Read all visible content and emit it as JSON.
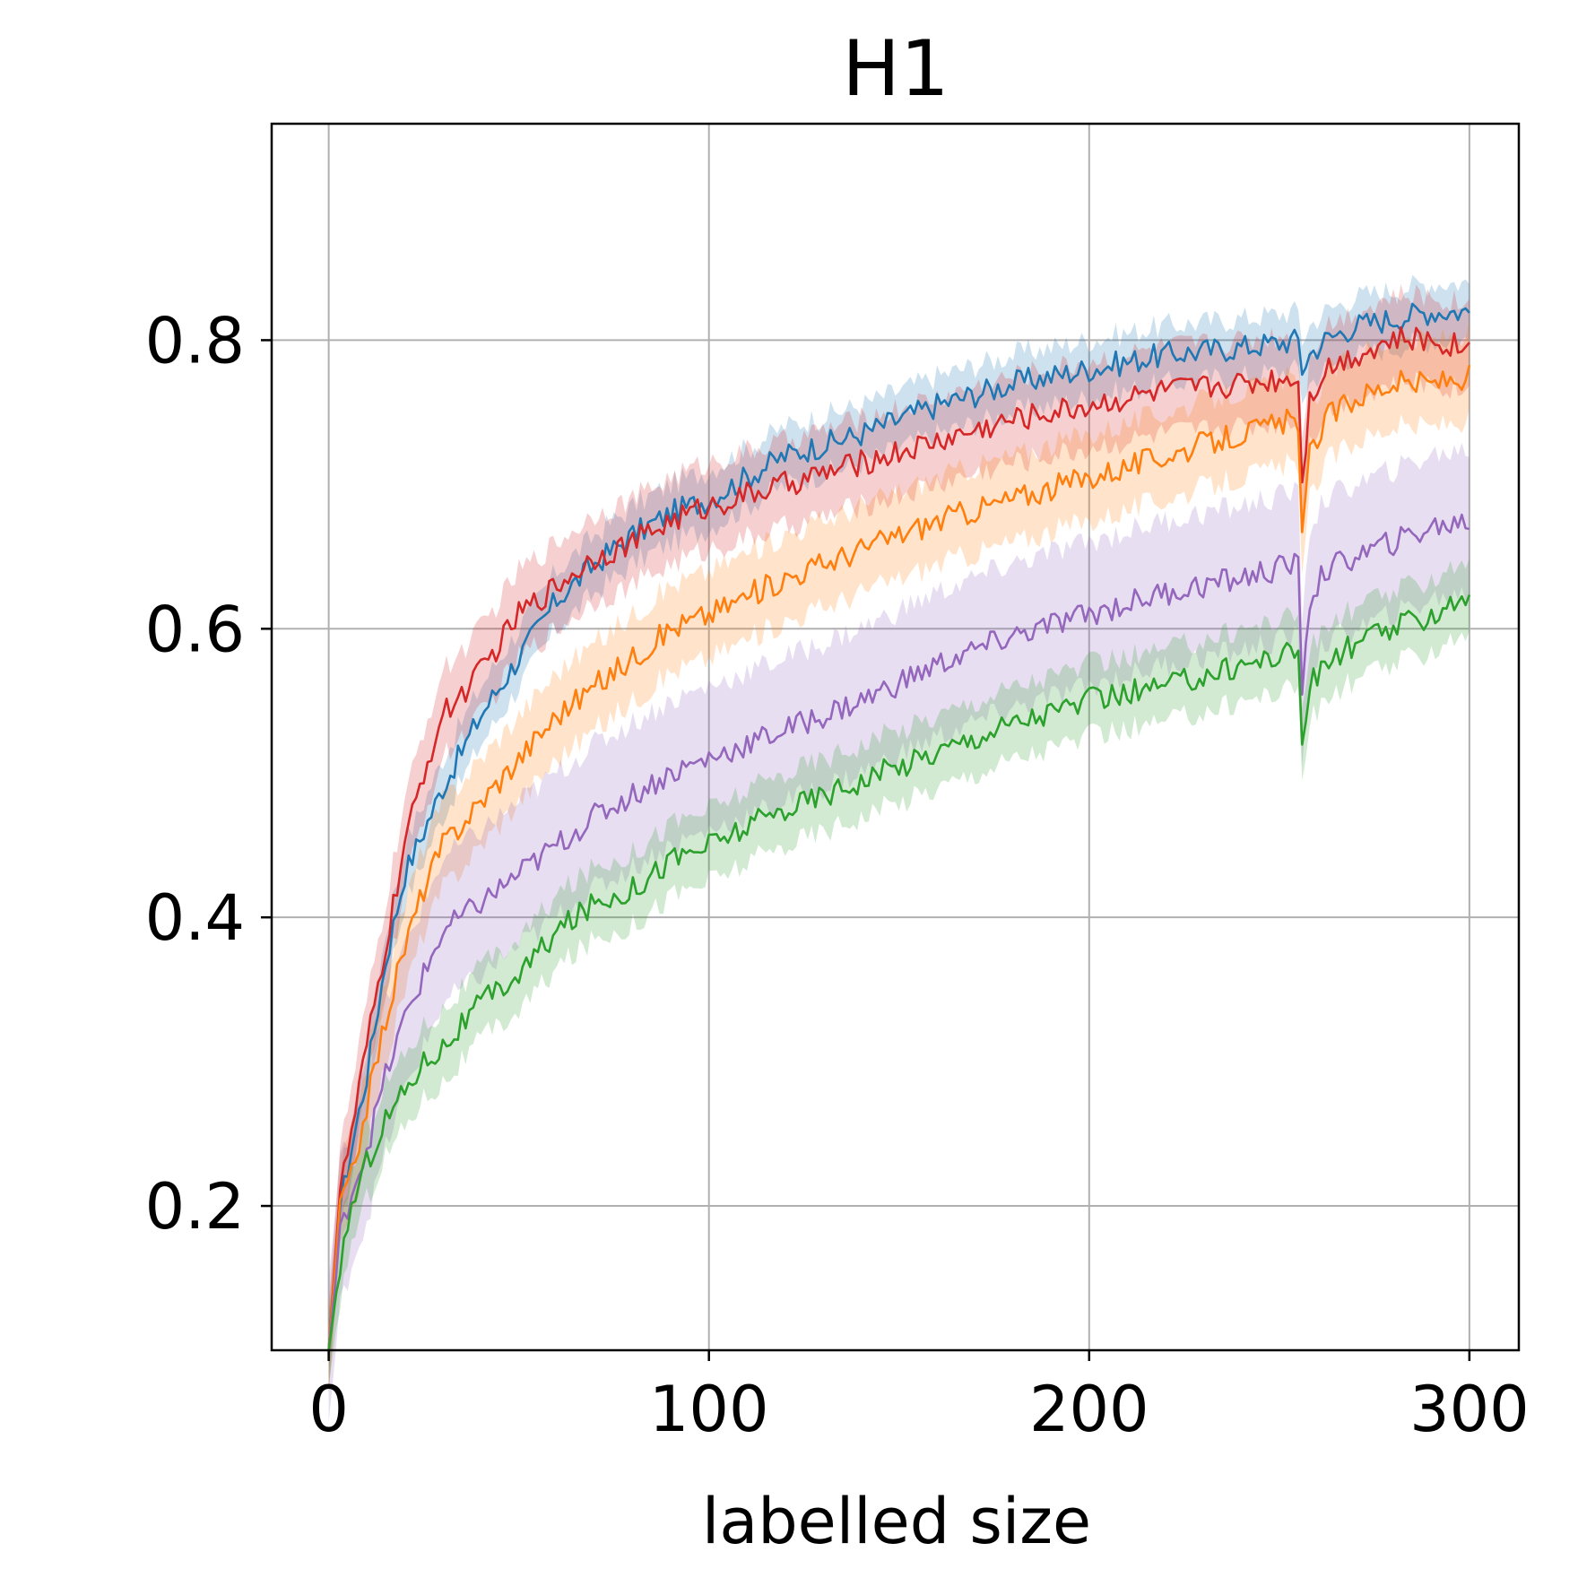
{
  "chart_data": {
    "type": "line",
    "title": "H1",
    "xlabel": "labelled size",
    "ylabel": "",
    "xlim": [
      -15,
      313
    ],
    "ylim": [
      0.1,
      0.95
    ],
    "xticks": [
      0,
      100,
      200,
      300
    ],
    "xtick_labels": [
      "0",
      "100",
      "200",
      "300"
    ],
    "yticks": [
      0.2,
      0.4,
      0.6,
      0.8
    ],
    "ytick_labels": [
      "0.2",
      "0.4",
      "0.6",
      "0.8"
    ],
    "grid": true,
    "legend": "none",
    "x": [
      0,
      3,
      6,
      10,
      15,
      20,
      25,
      30,
      40,
      50,
      60,
      70,
      80,
      90,
      100,
      120,
      140,
      160,
      180,
      200,
      220,
      240,
      255,
      256,
      258,
      262,
      270,
      280,
      290,
      300
    ],
    "series": [
      {
        "color": "#1f77b4",
        "values": [
          0.1,
          0.2,
          0.24,
          0.29,
          0.37,
          0.43,
          0.46,
          0.49,
          0.54,
          0.58,
          0.62,
          0.645,
          0.665,
          0.68,
          0.69,
          0.72,
          0.735,
          0.755,
          0.77,
          0.78,
          0.79,
          0.795,
          0.8,
          0.78,
          0.79,
          0.8,
          0.81,
          0.815,
          0.82,
          0.82
        ],
        "band": 0.02
      },
      {
        "color": "#d62728",
        "values": [
          0.1,
          0.21,
          0.25,
          0.31,
          0.38,
          0.45,
          0.5,
          0.54,
          0.57,
          0.61,
          0.63,
          0.65,
          0.66,
          0.675,
          0.685,
          0.7,
          0.715,
          0.73,
          0.745,
          0.755,
          0.765,
          0.77,
          0.775,
          0.7,
          0.76,
          0.78,
          0.79,
          0.8,
          0.8,
          0.795
        ],
        "band": 0.03
      },
      {
        "color": "#ff7f0e",
        "values": [
          0.1,
          0.2,
          0.22,
          0.27,
          0.33,
          0.38,
          0.42,
          0.45,
          0.48,
          0.51,
          0.54,
          0.56,
          0.58,
          0.6,
          0.61,
          0.635,
          0.655,
          0.675,
          0.69,
          0.705,
          0.72,
          0.735,
          0.745,
          0.66,
          0.72,
          0.745,
          0.76,
          0.77,
          0.77,
          0.775
        ],
        "band": 0.03
      },
      {
        "color": "#9467bd",
        "values": [
          0.1,
          0.18,
          0.21,
          0.24,
          0.29,
          0.33,
          0.36,
          0.39,
          0.41,
          0.43,
          0.45,
          0.47,
          0.485,
          0.5,
          0.51,
          0.53,
          0.55,
          0.575,
          0.595,
          0.61,
          0.625,
          0.635,
          0.645,
          0.56,
          0.62,
          0.64,
          0.65,
          0.66,
          0.67,
          0.675
        ],
        "band": 0.05
      },
      {
        "color": "#2ca02c",
        "values": [
          0.1,
          0.16,
          0.2,
          0.23,
          0.26,
          0.28,
          0.3,
          0.31,
          0.34,
          0.36,
          0.39,
          0.41,
          0.42,
          0.44,
          0.45,
          0.475,
          0.495,
          0.515,
          0.535,
          0.55,
          0.56,
          0.575,
          0.585,
          0.52,
          0.56,
          0.575,
          0.59,
          0.6,
          0.61,
          0.625
        ],
        "band": 0.025
      }
    ]
  }
}
